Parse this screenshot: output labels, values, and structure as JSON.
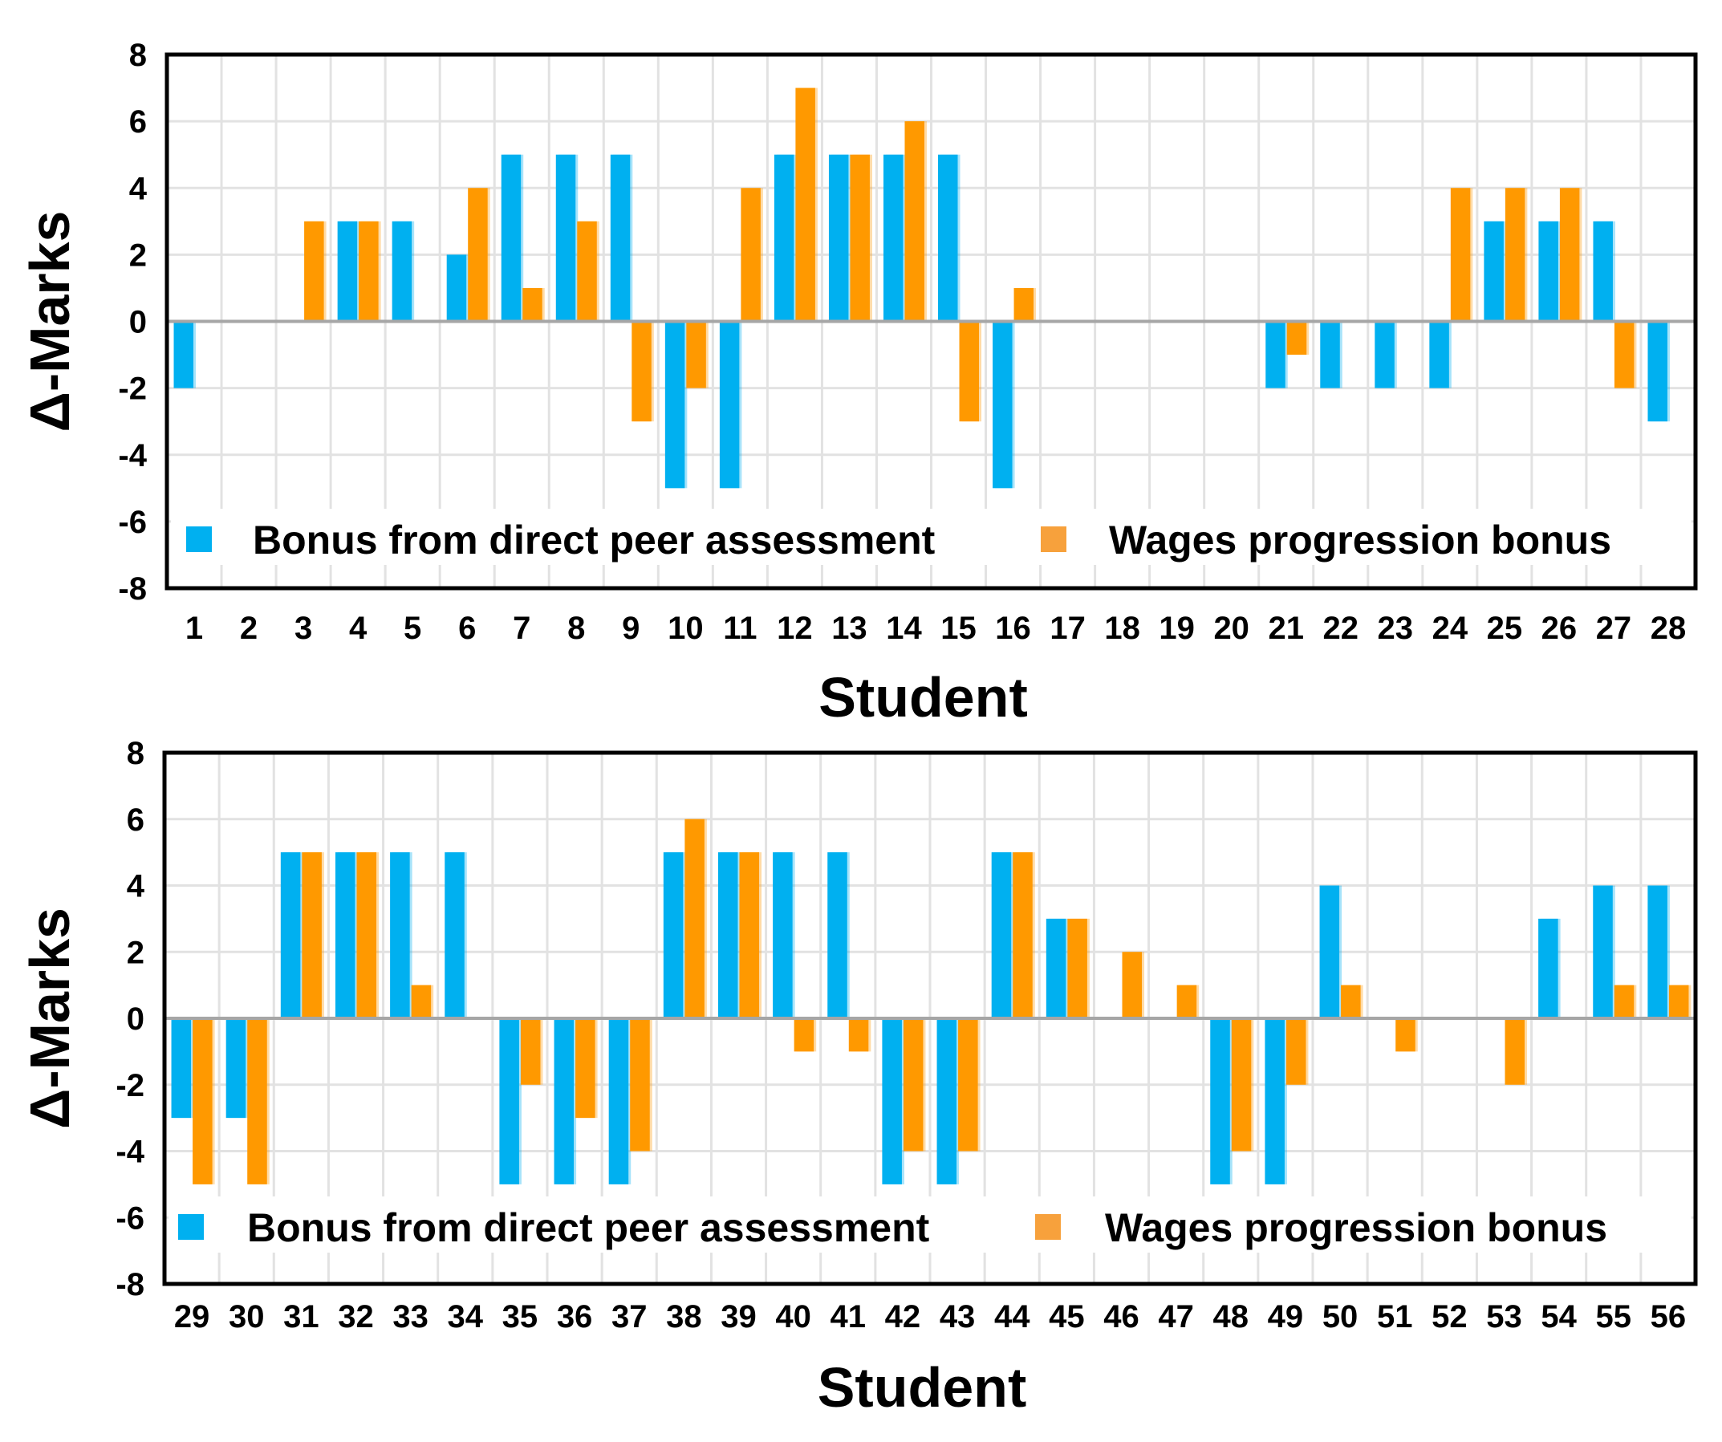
{
  "chart_data": [
    {
      "type": "bar",
      "title": "",
      "xlabel": "Student",
      "ylabel": "Δ-Marks",
      "ylim": [
        -8,
        8
      ],
      "yticks": [
        8,
        6,
        4,
        2,
        0,
        -2,
        -4,
        -6,
        -8
      ],
      "grid": true,
      "legend_position": "bottom-inside",
      "categories": [
        "1",
        "2",
        "3",
        "4",
        "5",
        "6",
        "7",
        "8",
        "9",
        "10",
        "11",
        "12",
        "13",
        "14",
        "15",
        "16",
        "17",
        "18",
        "19",
        "20",
        "21",
        "22",
        "23",
        "24",
        "25",
        "26",
        "27",
        "28"
      ],
      "series": [
        {
          "name": "Bonus from direct peer assessment",
          "color": "#00B0F0",
          "values": [
            -2,
            0,
            0,
            3,
            3,
            2,
            5,
            5,
            5,
            -5,
            -5,
            5,
            5,
            5,
            5,
            -5,
            0,
            0,
            0,
            0,
            -2,
            -2,
            -2,
            -2,
            3,
            3,
            3,
            -3
          ]
        },
        {
          "name": "Wages progression bonus",
          "color": "#FF9900",
          "values": [
            0,
            0,
            3,
            3,
            0,
            4,
            1,
            3,
            -3,
            -2,
            4,
            7,
            5,
            6,
            -3,
            1,
            0,
            0,
            0,
            0,
            -1,
            0,
            0,
            4,
            4,
            4,
            -2,
            0
          ]
        }
      ]
    },
    {
      "type": "bar",
      "title": "",
      "xlabel": "Student",
      "ylabel": "Δ-Marks",
      "ylim": [
        -8,
        8
      ],
      "yticks": [
        8,
        6,
        4,
        2,
        0,
        -2,
        -4,
        -6,
        -8
      ],
      "grid": true,
      "legend_position": "bottom-inside",
      "categories": [
        "29",
        "30",
        "31",
        "32",
        "33",
        "34",
        "35",
        "36",
        "37",
        "38",
        "39",
        "40",
        "41",
        "42",
        "43",
        "44",
        "45",
        "46",
        "47",
        "48",
        "49",
        "50",
        "51",
        "52",
        "53",
        "54",
        "55",
        "56"
      ],
      "series": [
        {
          "name": "Bonus from direct peer assessment",
          "color": "#00B0F0",
          "values": [
            -3,
            -3,
            5,
            5,
            5,
            5,
            -5,
            -5,
            -5,
            5,
            5,
            5,
            5,
            -5,
            -5,
            5,
            3,
            0,
            0,
            -5,
            -5,
            4,
            0,
            0,
            0,
            3,
            4,
            4
          ]
        },
        {
          "name": "Wages progression bonus",
          "color": "#FF9900",
          "values": [
            -5,
            -5,
            5,
            5,
            1,
            0,
            -2,
            -3,
            -4,
            6,
            5,
            -1,
            -1,
            -4,
            -4,
            5,
            3,
            2,
            1,
            -4,
            -2,
            1,
            -1,
            0,
            -2,
            0,
            1,
            1
          ]
        }
      ]
    }
  ]
}
